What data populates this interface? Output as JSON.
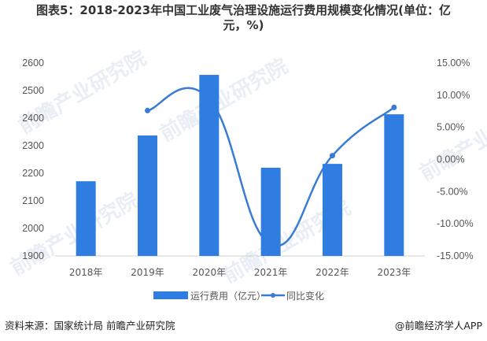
{
  "title": {
    "line1": "图表5：2018-2023年中国工业废气治理设施运行费用规模变化情况(单位：亿",
    "line2": "元，%)"
  },
  "colors": {
    "bar": "#2f7de1",
    "line": "#3a7bd5",
    "axis": "#d0d0d0",
    "text": "#555555"
  },
  "chart_data": {
    "type": "bar",
    "title": "图表5：2018-2023年中国工业废气治理设施运行费用规模变化情况(单位：亿元，%)",
    "categories": [
      "2018年",
      "2019年",
      "2020年",
      "2021年",
      "2022年",
      "2023年"
    ],
    "series": [
      {
        "name": "运行费用（亿元）",
        "type": "bar",
        "axis": "left",
        "values": [
          2171,
          2337,
          2557,
          2220,
          2234,
          2414
        ]
      },
      {
        "name": "同比变化",
        "type": "line",
        "axis": "right",
        "unit": "%",
        "values": [
          null,
          7.6,
          9.4,
          -13.2,
          0.6,
          8.1
        ]
      }
    ],
    "left_axis": {
      "ylim": [
        1900,
        2600
      ],
      "ticks": [
        "2600",
        "2500",
        "2400",
        "2300",
        "2200",
        "2100",
        "2000",
        "1900"
      ]
    },
    "right_axis": {
      "ylim": [
        -15,
        15
      ],
      "ticks": [
        "15.00%",
        "10.00%",
        "5.00%",
        "0.00%",
        "-5.00%",
        "-10.00%",
        "-15.00%"
      ]
    },
    "xlabel": "",
    "ylabel": "",
    "grid": false,
    "legend_position": "bottom"
  },
  "legend": {
    "bar_label": "运行费用（亿元）",
    "line_label": "同比变化"
  },
  "footer": {
    "source": "资料来源：国家统计局 前瞻产业研究院",
    "credit": "@前瞻经济学人APP"
  },
  "watermark": "前瞻产业研究院"
}
